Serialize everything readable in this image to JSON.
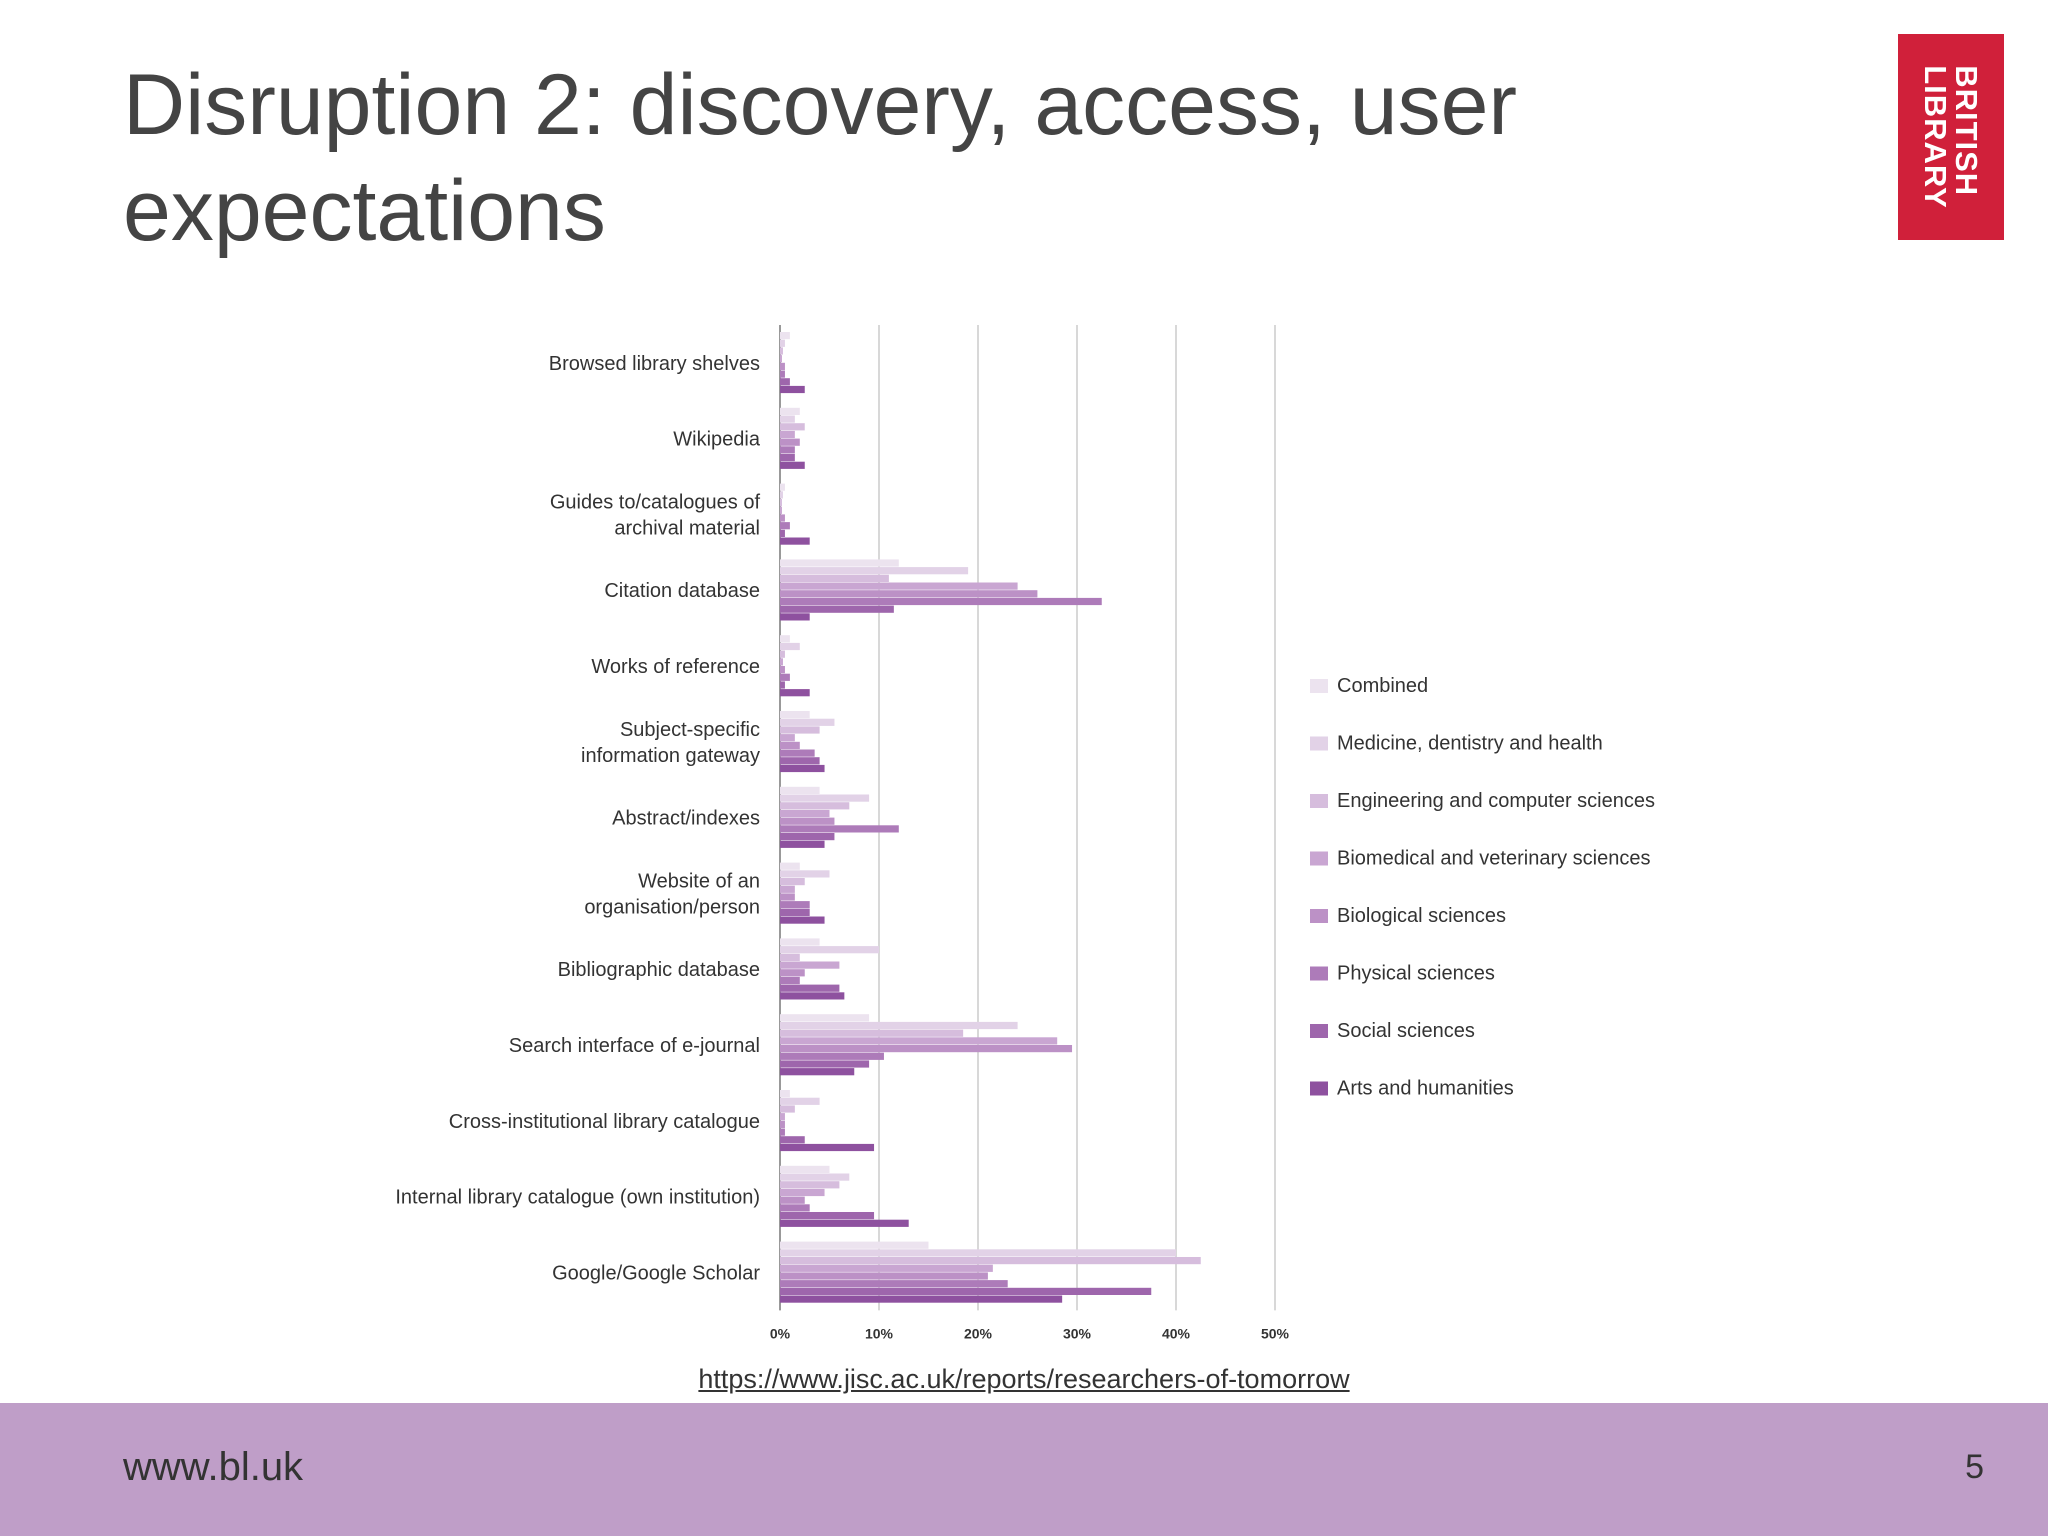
{
  "slide": {
    "title": "Disruption 2: discovery, access, user expectations",
    "logo_line1": "BRITISH",
    "logo_line2": "LIBRARY",
    "source_url": "https://www.jisc.ac.uk/reports/researchers-of-tomorrow",
    "footer_url": "www.bl.uk",
    "page_number": "5"
  },
  "chart_data": {
    "type": "bar",
    "orientation": "horizontal",
    "categories": [
      "Browsed library shelves",
      "Wikipedia",
      "Guides to/catalogues of archival material",
      "Citation database",
      "Works of reference",
      "Subject-specific information gateway",
      "Abstract/indexes",
      "Website of an organisation/person",
      "Bibliographic database",
      "Search interface of e-journal",
      "Cross-institutional library catalogue",
      "Internal library catalogue (own institution)",
      "Google/Google Scholar"
    ],
    "tick_labels": [
      "0%",
      "10%",
      "20%",
      "30%",
      "40%",
      "50%"
    ],
    "xlim": [
      0,
      50
    ],
    "grid": true,
    "legend_position": "right",
    "series": [
      {
        "name": "Combined",
        "color": "#ece3ef",
        "values": [
          1,
          2,
          0.5,
          12,
          1,
          3,
          4,
          2,
          4,
          9,
          1,
          5,
          15
        ]
      },
      {
        "name": "Medicine, dentistry and health",
        "color": "#e2d2e7",
        "values": [
          0.5,
          1.5,
          0.3,
          19,
          2,
          5.5,
          9,
          5,
          10,
          24,
          4,
          7,
          40
        ]
      },
      {
        "name": "Engineering and computer sciences",
        "color": "#d6bddd",
        "values": [
          0.3,
          2.5,
          0.2,
          11,
          0.5,
          4,
          7,
          2.5,
          2,
          18.5,
          1.5,
          6,
          42.5
        ]
      },
      {
        "name": "Biomedical and veterinary sciences",
        "color": "#c9a6d2",
        "values": [
          0.2,
          1.5,
          0.2,
          24,
          0.3,
          1.5,
          5,
          1.5,
          6,
          28,
          0.5,
          4.5,
          21.5
        ]
      },
      {
        "name": "Biological sciences",
        "color": "#bc91c6",
        "values": [
          0.5,
          2,
          0.5,
          26,
          0.5,
          2,
          5.5,
          1.5,
          2.5,
          29.5,
          0.5,
          2.5,
          21
        ]
      },
      {
        "name": "Physical sciences",
        "color": "#ad7bb9",
        "values": [
          0.5,
          1.5,
          1,
          32.5,
          1,
          3.5,
          12,
          3,
          2,
          10.5,
          0.5,
          3,
          23
        ]
      },
      {
        "name": "Social sciences",
        "color": "#9e66ac",
        "values": [
          1,
          1.5,
          0.5,
          11.5,
          0.5,
          4,
          5.5,
          3,
          6,
          9,
          2.5,
          9.5,
          37.5
        ]
      },
      {
        "name": "Arts and humanities",
        "color": "#8e519f",
        "values": [
          2.5,
          2.5,
          3,
          3,
          3,
          4.5,
          4.5,
          4.5,
          6.5,
          7.5,
          9.5,
          13,
          28.5
        ]
      }
    ]
  }
}
